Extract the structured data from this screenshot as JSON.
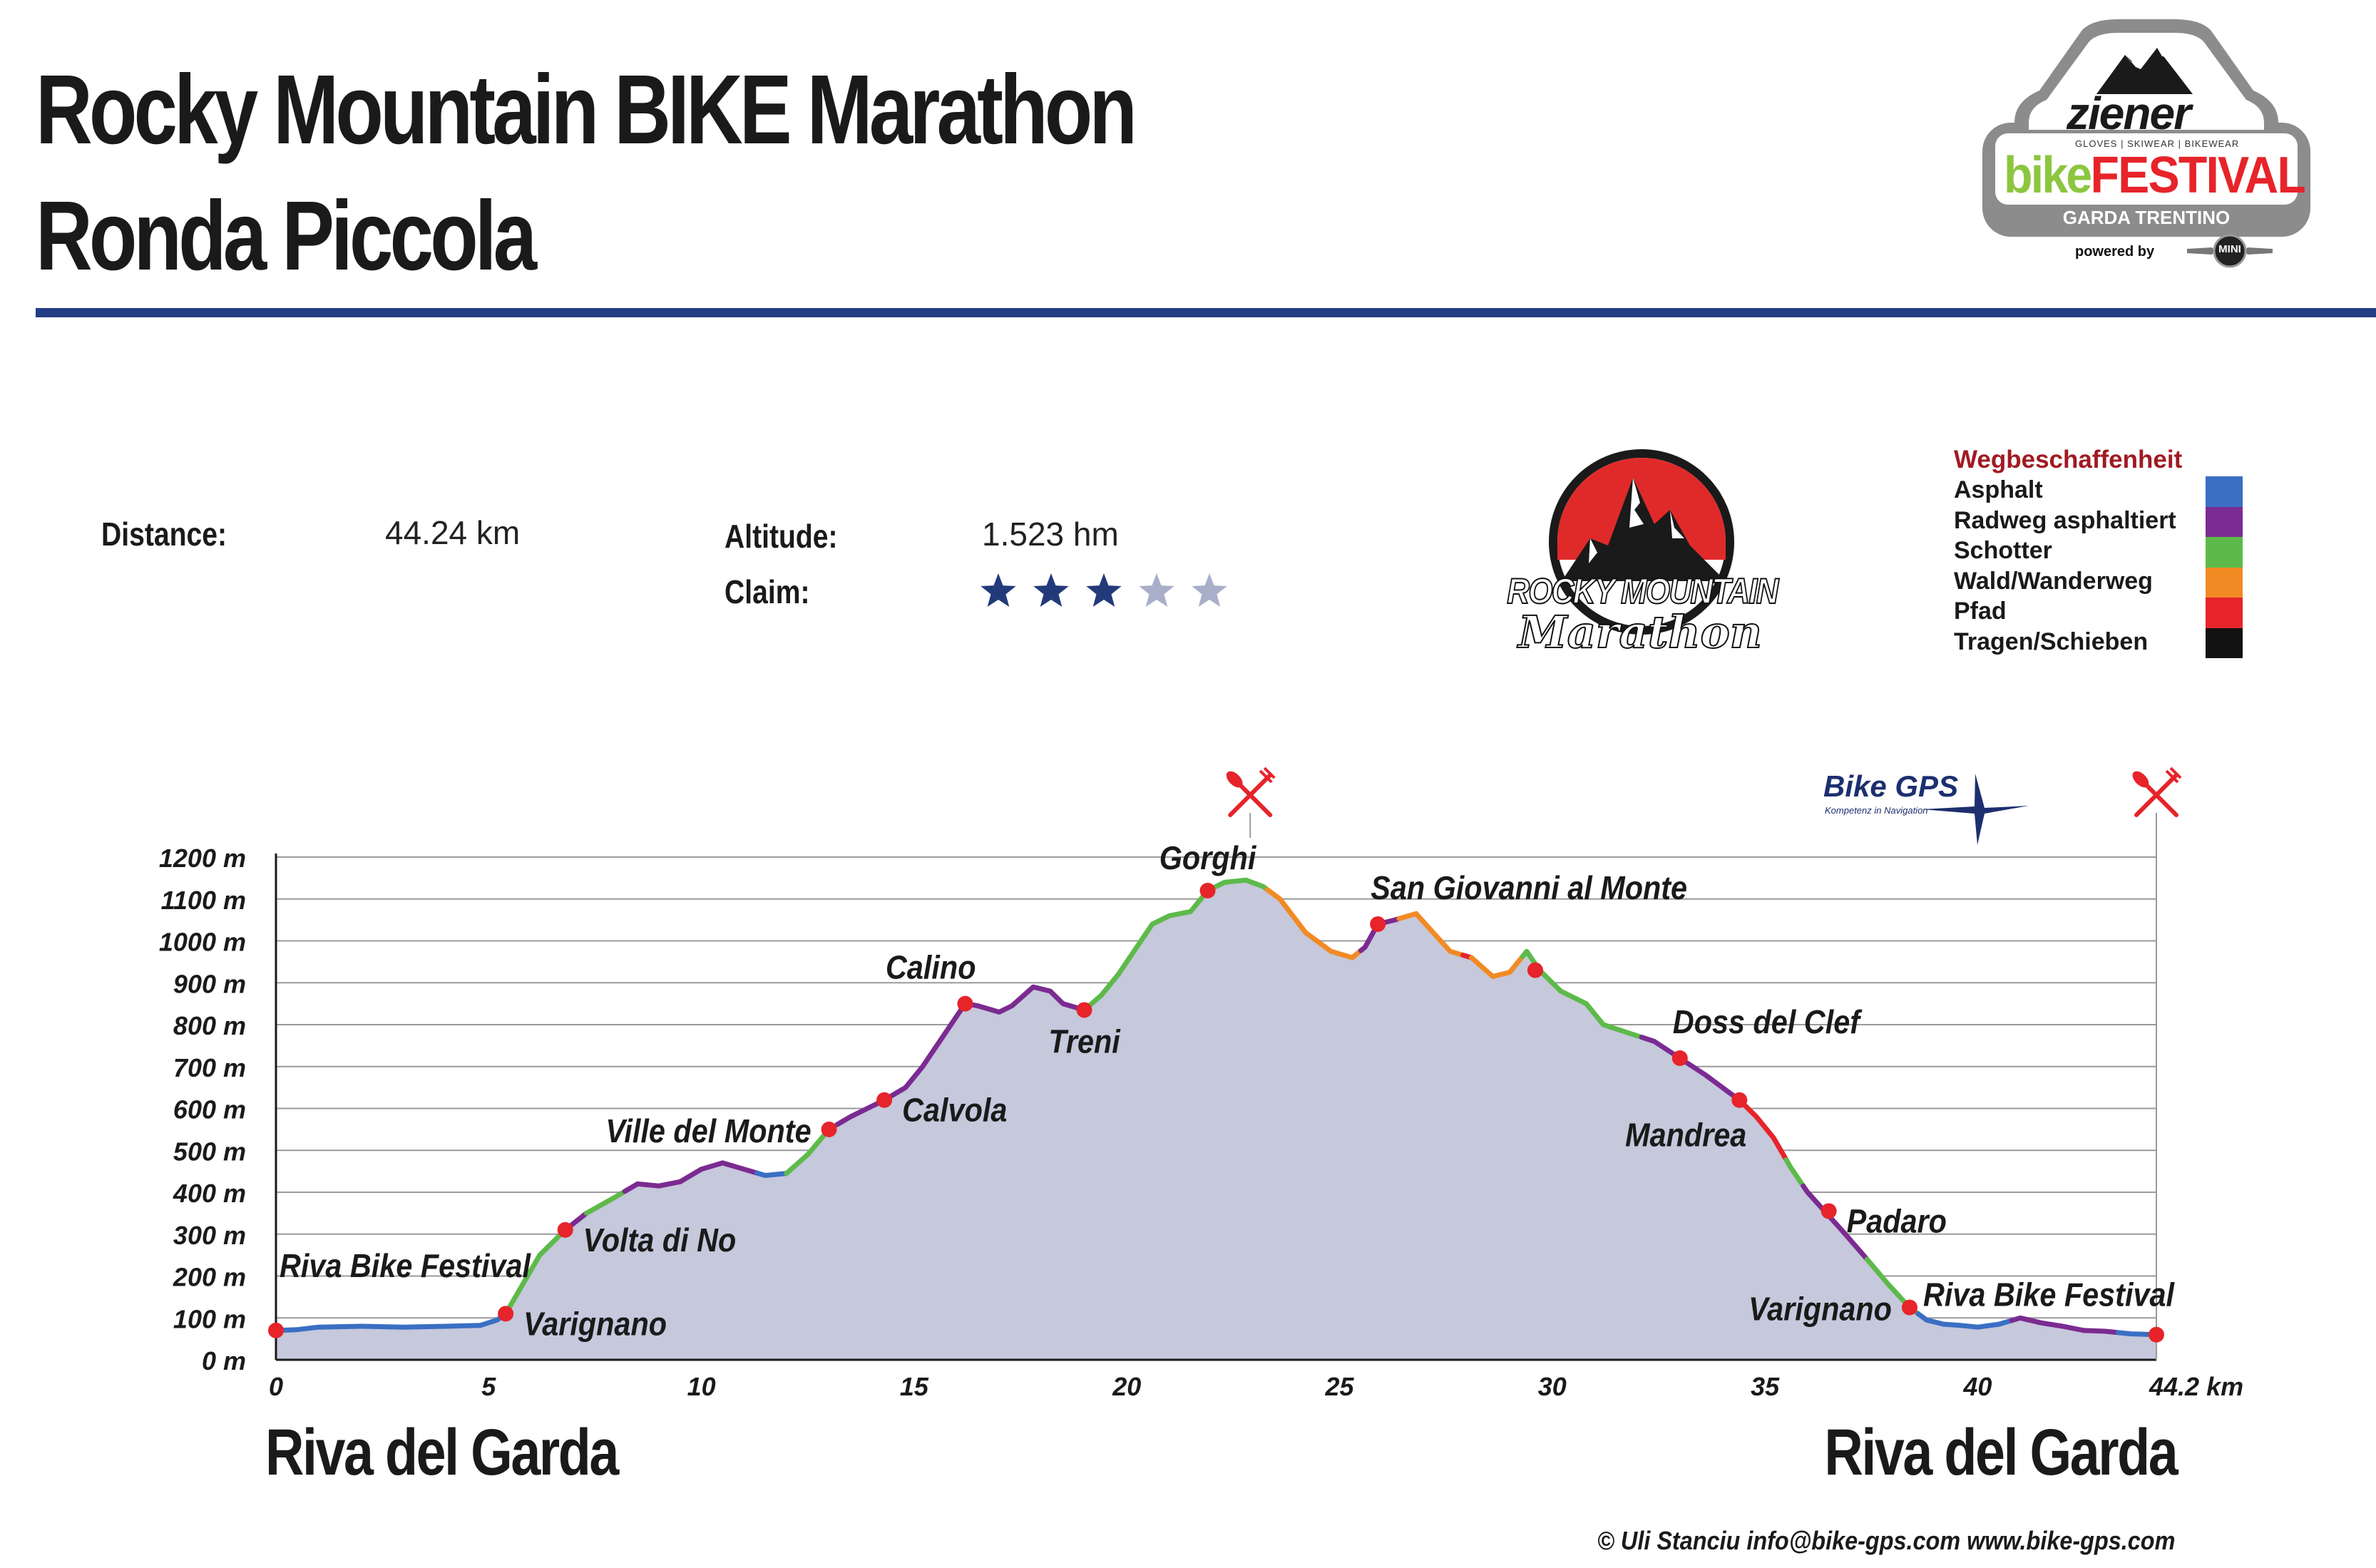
{
  "header": {
    "title_line1": "Rocky Mountain BIKE Marathon",
    "title_line2": "Ronda Piccola"
  },
  "stats": {
    "distance_label": "Distance:",
    "distance_value": "44.24 km",
    "altitude_label": "Altitude:",
    "altitude_value": "1.523 hm",
    "claim_label": "Claim:",
    "claim_rating": 3,
    "claim_max": 5
  },
  "legend": {
    "title": "Wegbeschaffenheit",
    "items": [
      {
        "label": "Asphalt",
        "color": "#3a6fc4"
      },
      {
        "label": "Radweg asphaltiert",
        "color": "#7b2b91"
      },
      {
        "label": "Schotter",
        "color": "#5dba4a"
      },
      {
        "label": "Wald/Wanderweg",
        "color": "#f28a24"
      },
      {
        "label": "Pfad",
        "color": "#e6242a"
      },
      {
        "label": "Tragen/Schieben",
        "color": "#111111"
      }
    ]
  },
  "logos": {
    "festival": {
      "line1": "ziener",
      "line2": "GLOVES | SKIWEAR | BIKEWEAR",
      "line3a": "bike",
      "line3b": "FESTIVAL",
      "line4": "GARDA TRENTINO",
      "line5": "powered by",
      "badge": "MINI"
    },
    "marathon": {
      "line1": "ROCKY MOUNTAIN",
      "line2": "Marathon"
    },
    "bikegps": {
      "name": "Bike GPS",
      "tagline": "Kompetenz in Navigation"
    }
  },
  "places": {
    "start": "Riva del Garda",
    "end": "Riva del Garda"
  },
  "footer": {
    "text": "© Uli Stanciu   info@bike-gps.com   www.bike-gps.com"
  },
  "icons": {
    "food": "fork-knife-icon",
    "star": "star-icon"
  },
  "chart_data": {
    "type": "area",
    "title": "",
    "xlabel": "",
    "ylabel": "",
    "x_unit_label": "44.2 km",
    "xlim": [
      0,
      44.2
    ],
    "ylim": [
      0,
      1200
    ],
    "x_ticks": [
      0,
      5,
      10,
      15,
      20,
      25,
      30,
      35,
      40
    ],
    "x_tick_labels": [
      "0",
      "5",
      "10",
      "15",
      "20",
      "25",
      "30",
      "35",
      "40"
    ],
    "y_ticks": [
      0,
      100,
      200,
      300,
      400,
      500,
      600,
      700,
      800,
      900,
      1000,
      1100,
      1200
    ],
    "y_tick_labels": [
      "0 m",
      "100 m",
      "200 m",
      "300 m",
      "400 m",
      "500 m",
      "600 m",
      "700 m",
      "800 m",
      "900 m",
      "1000 m",
      "1100 m",
      "1200 m"
    ],
    "grid": true,
    "fill_color": "#c6c8dc",
    "profile": [
      [
        0,
        70
      ],
      [
        0.5,
        72
      ],
      [
        1,
        78
      ],
      [
        2,
        80
      ],
      [
        3,
        78
      ],
      [
        4,
        80
      ],
      [
        4.8,
        82
      ],
      [
        5.2,
        95
      ],
      [
        5.4,
        110
      ],
      [
        5.8,
        180
      ],
      [
        6.2,
        250
      ],
      [
        6.8,
        310
      ],
      [
        7.3,
        350
      ],
      [
        8,
        390
      ],
      [
        8.5,
        420
      ],
      [
        9,
        415
      ],
      [
        9.5,
        425
      ],
      [
        10,
        455
      ],
      [
        10.5,
        470
      ],
      [
        11,
        455
      ],
      [
        11.5,
        440
      ],
      [
        12,
        445
      ],
      [
        12.5,
        490
      ],
      [
        13,
        550
      ],
      [
        13.5,
        580
      ],
      [
        14,
        605
      ],
      [
        14.3,
        620
      ],
      [
        14.8,
        650
      ],
      [
        15.2,
        700
      ],
      [
        15.6,
        760
      ],
      [
        16.2,
        850
      ],
      [
        16.5,
        845
      ],
      [
        17,
        830
      ],
      [
        17.3,
        845
      ],
      [
        17.8,
        890
      ],
      [
        18.2,
        880
      ],
      [
        18.5,
        850
      ],
      [
        19,
        835
      ],
      [
        19.4,
        870
      ],
      [
        19.8,
        920
      ],
      [
        20.2,
        980
      ],
      [
        20.6,
        1040
      ],
      [
        21,
        1060
      ],
      [
        21.5,
        1070
      ],
      [
        21.9,
        1120
      ],
      [
        22.3,
        1140
      ],
      [
        22.8,
        1145
      ],
      [
        23.2,
        1130
      ],
      [
        23.6,
        1100
      ],
      [
        24.2,
        1020
      ],
      [
        24.8,
        975
      ],
      [
        25.3,
        960
      ],
      [
        25.6,
        985
      ],
      [
        25.9,
        1040
      ],
      [
        26.3,
        1050
      ],
      [
        26.8,
        1065
      ],
      [
        27.2,
        1020
      ],
      [
        27.6,
        975
      ],
      [
        28.1,
        960
      ],
      [
        28.6,
        915
      ],
      [
        29,
        925
      ],
      [
        29.4,
        975
      ],
      [
        29.7,
        930
      ],
      [
        30.2,
        880
      ],
      [
        30.8,
        850
      ],
      [
        31.2,
        800
      ],
      [
        31.8,
        780
      ],
      [
        32.4,
        760
      ],
      [
        33,
        720
      ],
      [
        33.6,
        680
      ],
      [
        34.4,
        620
      ],
      [
        34.8,
        580
      ],
      [
        35.2,
        530
      ],
      [
        35.6,
        460
      ],
      [
        36,
        400
      ],
      [
        36.4,
        355
      ],
      [
        36.8,
        310
      ],
      [
        37.4,
        240
      ],
      [
        37.9,
        180
      ],
      [
        38.4,
        125
      ],
      [
        38.8,
        95
      ],
      [
        39.2,
        85
      ],
      [
        39.6,
        82
      ],
      [
        40,
        78
      ],
      [
        40.5,
        85
      ],
      [
        41,
        100
      ],
      [
        41.5,
        88
      ],
      [
        42,
        80
      ],
      [
        42.5,
        70
      ],
      [
        43,
        68
      ],
      [
        43.6,
        62
      ],
      [
        44.2,
        60
      ]
    ],
    "segments": [
      {
        "from": 0,
        "to": 5.4,
        "surface": "Asphalt"
      },
      {
        "from": 5.4,
        "to": 6.8,
        "surface": "Schotter"
      },
      {
        "from": 6.8,
        "to": 7.3,
        "surface": "Radweg asphaltiert"
      },
      {
        "from": 7.3,
        "to": 8.2,
        "surface": "Schotter"
      },
      {
        "from": 8.2,
        "to": 11.3,
        "surface": "Radweg asphaltiert"
      },
      {
        "from": 11.3,
        "to": 12,
        "surface": "Asphalt"
      },
      {
        "from": 12,
        "to": 13.2,
        "surface": "Schotter"
      },
      {
        "from": 13.2,
        "to": 19.1,
        "surface": "Radweg asphaltiert"
      },
      {
        "from": 19.1,
        "to": 23.3,
        "surface": "Schotter"
      },
      {
        "from": 23.3,
        "to": 25.5,
        "surface": "Wald/Wanderweg"
      },
      {
        "from": 25.5,
        "to": 26.4,
        "surface": "Radweg asphaltiert"
      },
      {
        "from": 26.4,
        "to": 27.9,
        "surface": "Wald/Wanderweg"
      },
      {
        "from": 27.9,
        "to": 28.1,
        "surface": "Pfad"
      },
      {
        "from": 28.1,
        "to": 29.3,
        "surface": "Wald/Wanderweg"
      },
      {
        "from": 29.3,
        "to": 32.1,
        "surface": "Schotter"
      },
      {
        "from": 32.1,
        "to": 34.4,
        "surface": "Radweg asphaltiert"
      },
      {
        "from": 34.4,
        "to": 35.5,
        "surface": "Pfad"
      },
      {
        "from": 35.5,
        "to": 35.9,
        "surface": "Schotter"
      },
      {
        "from": 35.9,
        "to": 37.4,
        "surface": "Radweg asphaltiert"
      },
      {
        "from": 37.4,
        "to": 38.6,
        "surface": "Schotter"
      },
      {
        "from": 38.6,
        "to": 40.8,
        "surface": "Asphalt"
      },
      {
        "from": 40.8,
        "to": 43.3,
        "surface": "Radweg asphaltiert"
      },
      {
        "from": 43.3,
        "to": 44.2,
        "surface": "Asphalt"
      }
    ],
    "waypoints": [
      {
        "name": "Riva Bike Festival",
        "km": 0,
        "alt": 70,
        "label_side": "above-right"
      },
      {
        "name": "Varignano",
        "km": 5.4,
        "alt": 110,
        "label_side": "right"
      },
      {
        "name": "Volta di No",
        "km": 6.8,
        "alt": 310,
        "label_side": "right"
      },
      {
        "name": "Ville del Monte",
        "km": 13.0,
        "alt": 550,
        "label_side": "left"
      },
      {
        "name": "Calvola",
        "km": 14.3,
        "alt": 620,
        "label_side": "right"
      },
      {
        "name": "Calino",
        "km": 16.2,
        "alt": 850,
        "label_side": "above-left"
      },
      {
        "name": "Treni",
        "km": 19.0,
        "alt": 835,
        "label_side": "below"
      },
      {
        "name": "Gorghi",
        "km": 21.9,
        "alt": 1120,
        "label_side": "above"
      },
      {
        "name": "San Giovanni al Monte",
        "km": 25.9,
        "alt": 1040,
        "label_side": "above-right"
      },
      {
        "name": "",
        "km": 29.6,
        "alt": 930,
        "label_side": "none"
      },
      {
        "name": "Doss del Clef",
        "km": 33.0,
        "alt": 720,
        "label_side": "above-right"
      },
      {
        "name": "Mandrea",
        "km": 34.4,
        "alt": 620,
        "label_side": "below-left"
      },
      {
        "name": "Padaro",
        "km": 36.5,
        "alt": 355,
        "label_side": "right"
      },
      {
        "name": "Varignano",
        "km": 38.4,
        "alt": 125,
        "label_side": "left"
      },
      {
        "name": "Riva Bike Festival",
        "km": 44.2,
        "alt": 60,
        "label_side": "above-left"
      }
    ],
    "food_stations_km": [
      22.9,
      44.2
    ]
  }
}
